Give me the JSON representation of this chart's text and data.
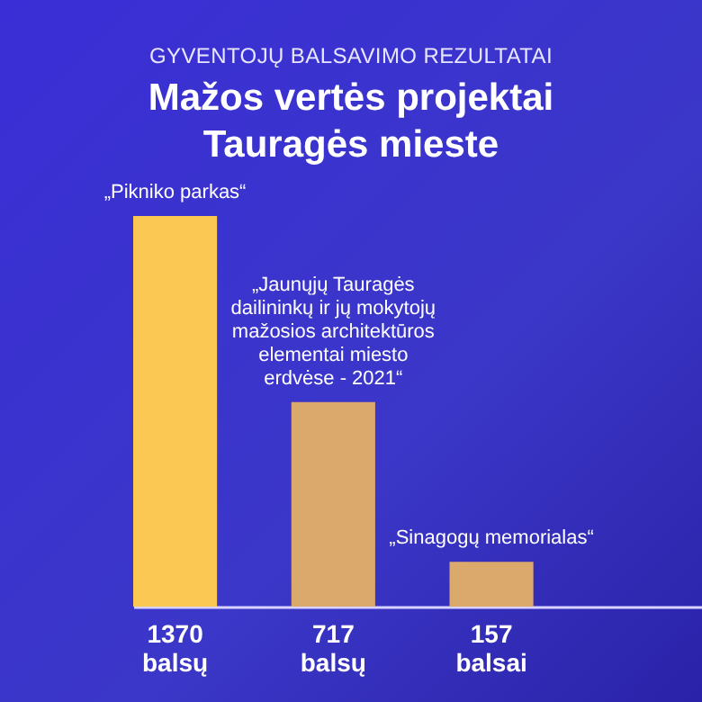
{
  "chart_data": {
    "type": "bar",
    "subtitle": "GYVENTOJŲ BALSAVIMO REZULTATAI",
    "title": "Mažos vertės projektai Tauragės mieste",
    "categories": [
      "„Pikniko parkas“",
      "„Jaunųjų Tauragės dailininkų ir jų mokytojų mažosios architektūros elementai miesto erdvėse - 2021“",
      "„Sinagogų memorialas“"
    ],
    "values": [
      1370,
      717,
      157
    ],
    "value_labels": [
      "1370 balsų",
      "717 balsų",
      "157 balsai"
    ],
    "colors": [
      "#fbc853",
      "#dba96c",
      "#dba96c"
    ],
    "grid": false
  }
}
